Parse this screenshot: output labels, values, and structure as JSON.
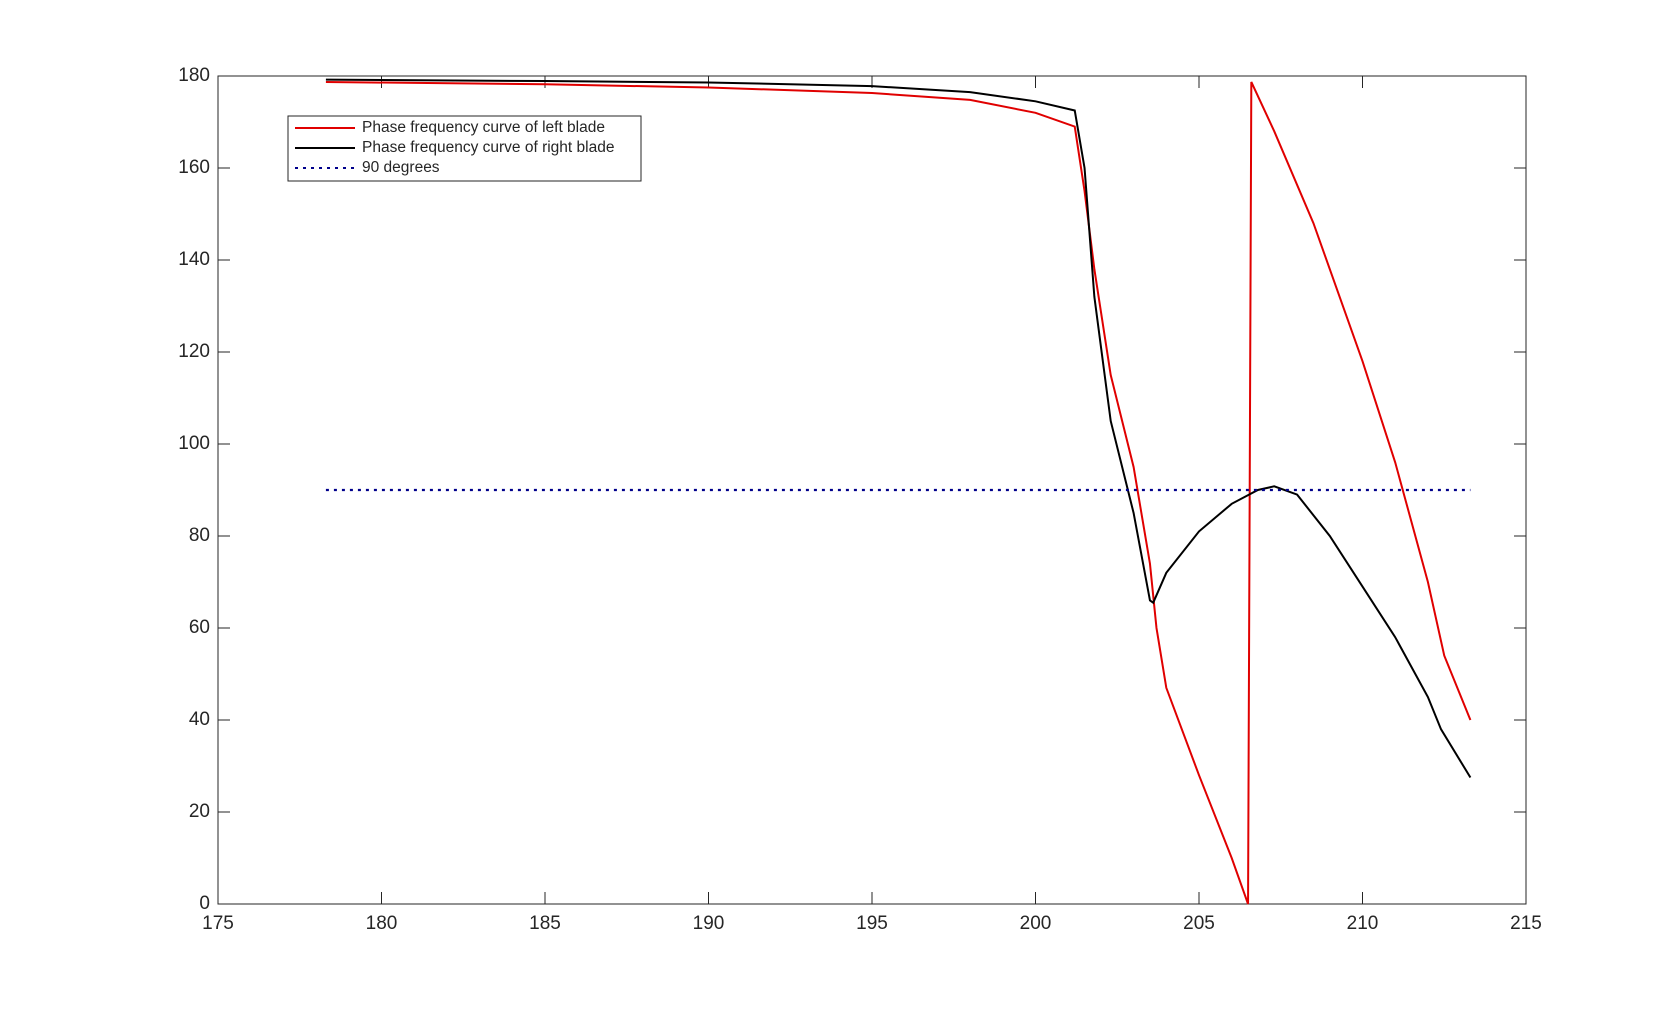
{
  "chart_data": {
    "type": "line",
    "series": [
      {
        "name": "Phase frequency curve of left blade",
        "color": "#e00000",
        "style": "solid",
        "x": [
          178.3,
          185,
          190,
          195,
          198,
          200,
          201.2,
          201.5,
          201.8,
          202.3,
          203,
          203.5,
          203.7,
          204,
          205,
          206,
          206.5,
          206.6,
          207.3,
          208.5,
          210,
          211,
          212,
          212.5,
          213.3
        ],
        "values": [
          178.7,
          178.2,
          177.5,
          176.3,
          174.8,
          172,
          169,
          155,
          138,
          115,
          95,
          74,
          60,
          47,
          28,
          10,
          0,
          178.7,
          168,
          148,
          118,
          96,
          70,
          54,
          40
        ]
      },
      {
        "name": "Phase frequency curve of right blade",
        "color": "#000000",
        "style": "solid",
        "x": [
          178.3,
          185,
          190,
          195,
          198,
          200,
          201.2,
          201.5,
          201.8,
          202.3,
          203,
          203.5,
          203.6,
          204,
          205,
          206,
          206.8,
          207.3,
          208,
          209,
          210,
          211,
          212,
          212.4,
          213.3
        ],
        "values": [
          179.2,
          178.9,
          178.6,
          177.8,
          176.5,
          174.5,
          172.5,
          160,
          132,
          105,
          85,
          66,
          65.5,
          72,
          81,
          87,
          90,
          90.8,
          89,
          80,
          69,
          58,
          45,
          38,
          27.5
        ]
      },
      {
        "name": "90 degrees",
        "color": "#00008b",
        "style": "dotted",
        "x": [
          178.3,
          213.3
        ],
        "values": [
          90,
          90
        ]
      }
    ],
    "xlim": [
      175,
      215
    ],
    "xticks": [
      175,
      180,
      185,
      190,
      195,
      200,
      205,
      210,
      215
    ],
    "ylim": [
      0,
      180
    ],
    "yticks": [
      0,
      20,
      40,
      60,
      80,
      100,
      120,
      140,
      160,
      180
    ],
    "grid": false,
    "legend": "upper-left"
  }
}
